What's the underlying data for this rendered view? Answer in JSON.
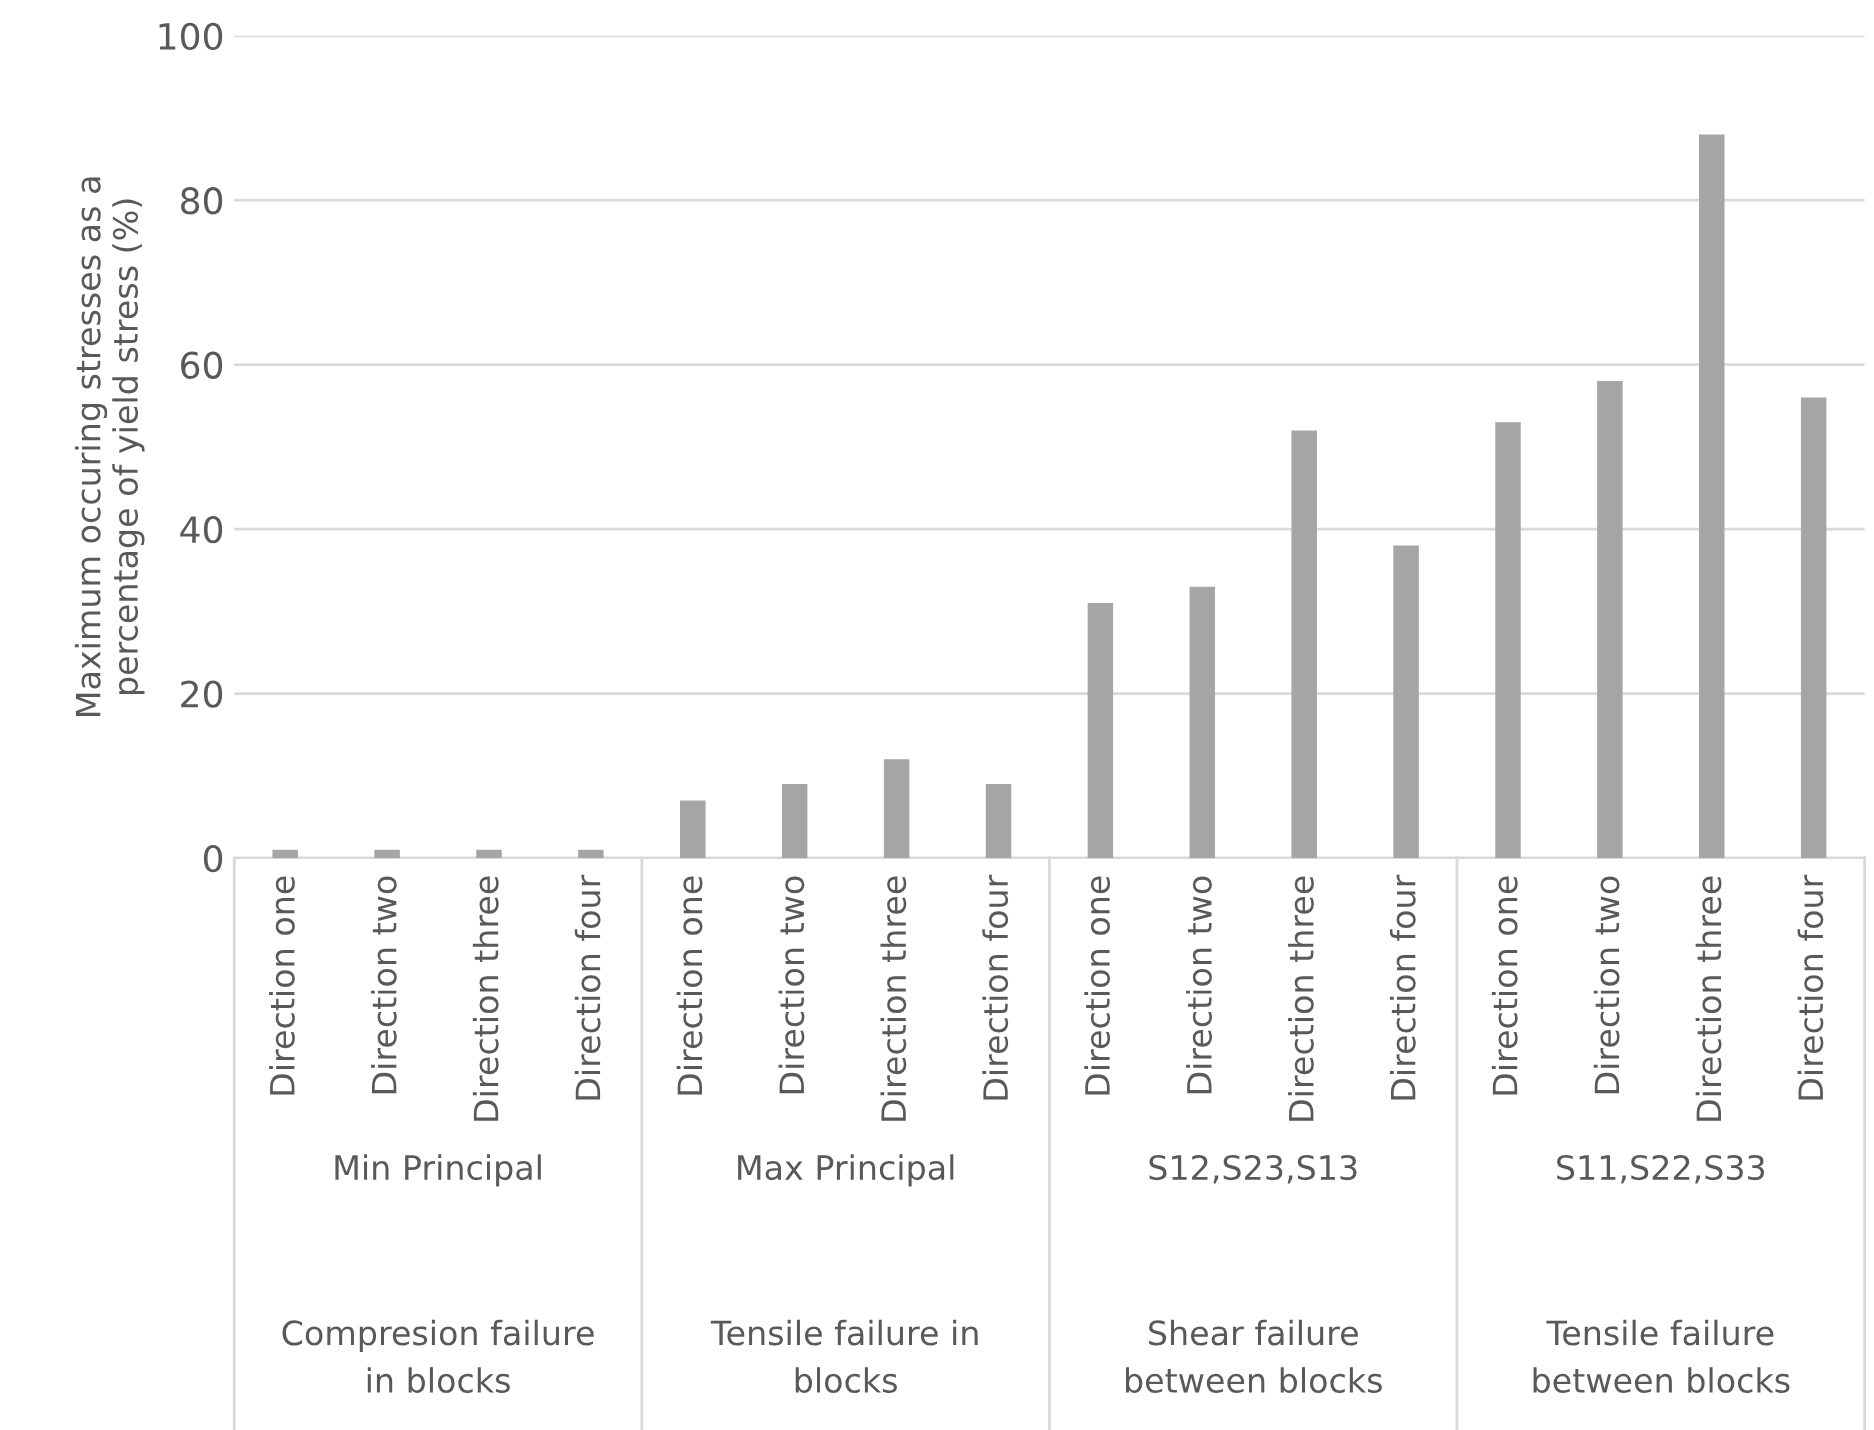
{
  "chart_data": {
    "type": "bar",
    "ylabel": "Maximum occuring stresses as a\npercentage of yield stress (%)",
    "categories": [
      "Direction one",
      "Direction two",
      "Direction three",
      "Direction four",
      "Direction one",
      "Direction two",
      "Direction three",
      "Direction four",
      "Direction one",
      "Direction two",
      "Direction three",
      "Direction four",
      "Direction one",
      "Direction two",
      "Direction three",
      "Direction four"
    ],
    "values": [
      1,
      1,
      1,
      1,
      7,
      9,
      12,
      9,
      31,
      33,
      52,
      38,
      53,
      58,
      88,
      56
    ],
    "color": "#a5a5a5",
    "ylim": [
      0,
      100
    ],
    "yticks": [
      0,
      20,
      40,
      60,
      80,
      100
    ],
    "grid": "y",
    "legend": false,
    "annotations": [
      "Min Principal",
      "Max Principal",
      "S12,S23,S13",
      "S11,S22,S33",
      "Compresion failure\nin blocks",
      "Tensile failure in\nblocks",
      "Shear failure\nbetween blocks",
      "Tensile failure\nbetween blocks"
    ]
  }
}
